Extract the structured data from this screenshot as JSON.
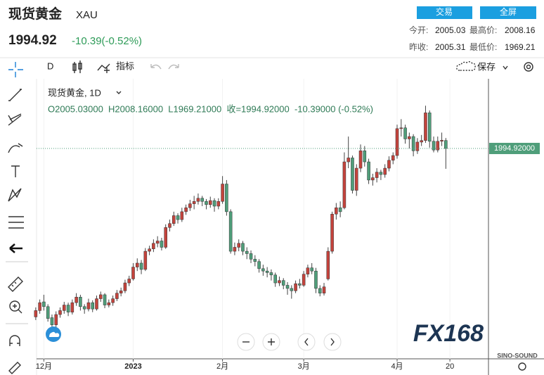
{
  "header": {
    "title": "现货黄金",
    "symbol": "XAU",
    "price": "1994.92",
    "change": "-10.39(-0.52%)",
    "buttons": [
      "交易",
      "全屏"
    ],
    "stats": [
      {
        "label": "今开:",
        "value": "2005.03"
      },
      {
        "label": "最高价:",
        "value": "2008.16"
      },
      {
        "label": "昨收:",
        "value": "2005.31"
      },
      {
        "label": "最低价:",
        "value": "1969.21"
      }
    ]
  },
  "toolbar": {
    "interval": "D",
    "indicators": "指标",
    "save": "保存"
  },
  "chart_data": {
    "type": "candlestick",
    "legend_title": "现货黄金, 1D",
    "ohlc_label": "O2005.03000  H2008.16000  L1969.21000  收=1994.92000  -10.39000 (-0.52%)",
    "up_color": "#c4433c",
    "down_color": "#4f9e7a",
    "last_price": {
      "value": 1994.92,
      "label": "1994.92000"
    },
    "watermark": "FX168",
    "watermark_sub": "SINO-SOUND",
    "xlim": [
      0.2,
      111.5
    ],
    "ylim": [
      1729,
      2083
    ],
    "xticks": [
      {
        "value": 2,
        "label": "12月"
      },
      {
        "value": 24,
        "label": "2023"
      },
      {
        "value": 46,
        "label": "2月"
      },
      {
        "value": 66,
        "label": "3月"
      },
      {
        "value": 89,
        "label": "4月"
      },
      {
        "value": 102,
        "label": "20"
      }
    ],
    "candles": [
      [
        1782,
        1794,
        1778,
        1790
      ],
      [
        1790,
        1804,
        1786,
        1800
      ],
      [
        1801,
        1810,
        1790,
        1795
      ],
      [
        1795,
        1798,
        1776,
        1780
      ],
      [
        1781,
        1785,
        1765,
        1772
      ],
      [
        1772,
        1789,
        1768,
        1785
      ],
      [
        1785,
        1794,
        1781,
        1790
      ],
      [
        1790,
        1801,
        1786,
        1797
      ],
      [
        1797,
        1800,
        1783,
        1788
      ],
      [
        1788,
        1804,
        1785,
        1800
      ],
      [
        1800,
        1812,
        1796,
        1807
      ],
      [
        1807,
        1810,
        1790,
        1795
      ],
      [
        1795,
        1798,
        1786,
        1792
      ],
      [
        1792,
        1805,
        1789,
        1800
      ],
      [
        1800,
        1803,
        1788,
        1792
      ],
      [
        1792,
        1809,
        1790,
        1805
      ],
      [
        1805,
        1814,
        1801,
        1810
      ],
      [
        1810,
        1812,
        1793,
        1797
      ],
      [
        1797,
        1804,
        1794,
        1800
      ],
      [
        1800,
        1809,
        1796,
        1805
      ],
      [
        1805,
        1816,
        1802,
        1812
      ],
      [
        1812,
        1819,
        1808,
        1815
      ],
      [
        1815,
        1829,
        1812,
        1825
      ],
      [
        1825,
        1834,
        1821,
        1830
      ],
      [
        1830,
        1850,
        1828,
        1845
      ],
      [
        1845,
        1856,
        1840,
        1850
      ],
      [
        1850,
        1854,
        1836,
        1842
      ],
      [
        1842,
        1869,
        1840,
        1865
      ],
      [
        1865,
        1872,
        1860,
        1868
      ],
      [
        1868,
        1880,
        1864,
        1875
      ],
      [
        1875,
        1884,
        1870,
        1878
      ],
      [
        1878,
        1882,
        1866,
        1870
      ],
      [
        1870,
        1899,
        1868,
        1895
      ],
      [
        1895,
        1905,
        1890,
        1900
      ],
      [
        1900,
        1915,
        1897,
        1910
      ],
      [
        1910,
        1913,
        1900,
        1905
      ],
      [
        1905,
        1920,
        1902,
        1915
      ],
      [
        1915,
        1924,
        1911,
        1920
      ],
      [
        1920,
        1930,
        1916,
        1925
      ],
      [
        1925,
        1935,
        1918,
        1928
      ],
      [
        1928,
        1938,
        1924,
        1932
      ],
      [
        1932,
        1935,
        1922,
        1928
      ],
      [
        1928,
        1931,
        1918,
        1924
      ],
      [
        1924,
        1934,
        1920,
        1929
      ],
      [
        1929,
        1932,
        1915,
        1922
      ],
      [
        1922,
        1932,
        1918,
        1928
      ],
      [
        1928,
        1960,
        1925,
        1950
      ],
      [
        1950,
        1955,
        1910,
        1915
      ],
      [
        1915,
        1918,
        1862,
        1865
      ],
      [
        1865,
        1876,
        1860,
        1870
      ],
      [
        1870,
        1880,
        1865,
        1875
      ],
      [
        1875,
        1878,
        1860,
        1865
      ],
      [
        1865,
        1870,
        1855,
        1862
      ],
      [
        1862,
        1866,
        1850,
        1855
      ],
      [
        1855,
        1860,
        1846,
        1852
      ],
      [
        1852,
        1855,
        1838,
        1843
      ],
      [
        1843,
        1848,
        1834,
        1840
      ],
      [
        1840,
        1845,
        1832,
        1838
      ],
      [
        1838,
        1842,
        1828,
        1835
      ],
      [
        1835,
        1838,
        1820,
        1825
      ],
      [
        1825,
        1833,
        1821,
        1828
      ],
      [
        1828,
        1831,
        1817,
        1822
      ],
      [
        1822,
        1826,
        1810,
        1818
      ],
      [
        1818,
        1822,
        1805,
        1815
      ],
      [
        1815,
        1828,
        1812,
        1824
      ],
      [
        1824,
        1830,
        1818,
        1822
      ],
      [
        1822,
        1840,
        1820,
        1836
      ],
      [
        1836,
        1848,
        1832,
        1844
      ],
      [
        1844,
        1850,
        1836,
        1840
      ],
      [
        1840,
        1844,
        1812,
        1818
      ],
      [
        1818,
        1822,
        1808,
        1812
      ],
      [
        1812,
        1825,
        1809,
        1820
      ],
      [
        1830,
        1870,
        1828,
        1865
      ],
      [
        1865,
        1915,
        1862,
        1912
      ],
      [
        1912,
        1926,
        1905,
        1920
      ],
      [
        1920,
        1928,
        1908,
        1915
      ],
      [
        1920,
        1990,
        1918,
        1978
      ],
      [
        1978,
        2010,
        1970,
        1983
      ],
      [
        1983,
        1986,
        1938,
        1942
      ],
      [
        1942,
        1975,
        1935,
        1970
      ],
      [
        1970,
        2000,
        1965,
        1992
      ],
      [
        1992,
        1998,
        1972,
        1978
      ],
      [
        1978,
        1982,
        1950,
        1955
      ],
      [
        1955,
        1963,
        1948,
        1958
      ],
      [
        1958,
        1970,
        1952,
        1965
      ],
      [
        1965,
        1968,
        1955,
        1962
      ],
      [
        1962,
        1975,
        1958,
        1970
      ],
      [
        1970,
        1985,
        1966,
        1980
      ],
      [
        1980,
        1990,
        1975,
        1986
      ],
      [
        1986,
        2025,
        1982,
        2020
      ],
      [
        2020,
        2032,
        2010,
        2021
      ],
      [
        2021,
        2025,
        2001,
        2007
      ],
      [
        2007,
        2015,
        1995,
        2010
      ],
      [
        2010,
        2013,
        1985,
        1992
      ],
      [
        1992,
        2008,
        1988,
        2003
      ],
      [
        2003,
        2012,
        1998,
        2005
      ],
      [
        2005,
        2049,
        2002,
        2040
      ],
      [
        2040,
        2043,
        1996,
        2004
      ],
      [
        2004,
        2010,
        1990,
        1993
      ],
      [
        1993,
        2010,
        1990,
        2004
      ],
      [
        2004,
        2015,
        1998,
        2005.31
      ],
      [
        2005.03,
        2008.16,
        1969.21,
        1994.92
      ]
    ]
  }
}
